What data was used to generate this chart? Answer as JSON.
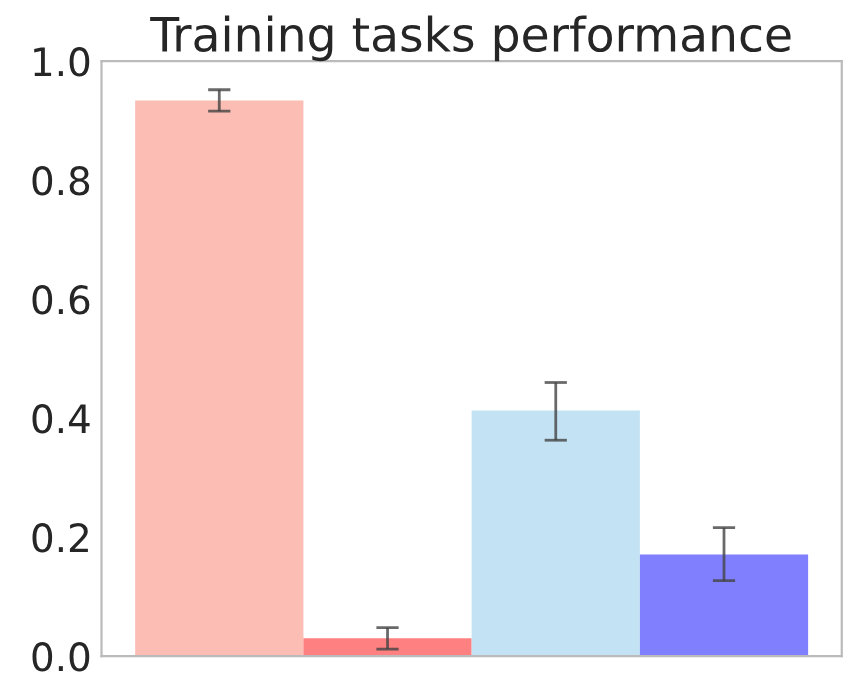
{
  "chart_data": {
    "type": "bar",
    "title": "Training tasks performance",
    "categories": [
      null,
      null,
      null,
      null
    ],
    "values": [
      0.934,
      0.03,
      0.413,
      0.171
    ],
    "colors": [
      "#fbbdb4",
      "#ff8080",
      "#c3e3f4",
      "#8080ff"
    ],
    "errors": [
      0.018,
      0.018,
      [
        0.363,
        0.46
      ],
      [
        0.127,
        0.216
      ]
    ],
    "ylim": [
      0,
      1
    ],
    "yticks": [
      {
        "value": 0,
        "label": "0.0"
      },
      0.2,
      0.4,
      0.6,
      0.8,
      {
        "value": 1,
        "label": "1.0"
      }
    ],
    "tick_labels": "y"
  }
}
